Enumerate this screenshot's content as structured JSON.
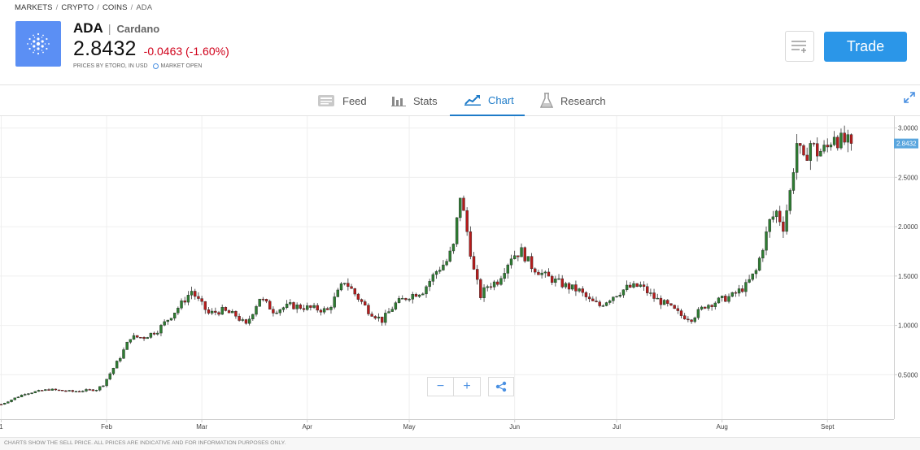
{
  "breadcrumb": [
    "MARKETS",
    "CRYPTO",
    "COINS",
    "ADA"
  ],
  "instrument": {
    "symbol": "ADA",
    "name": "Cardano",
    "price": "2.8432",
    "change": "-0.0463 (-1.60%)",
    "price_source": "PRICES BY ETORO, IN USD",
    "market_status": "MARKET OPEN"
  },
  "actions": {
    "watchlist_icon": "add-to-watchlist-icon",
    "trade_label": "Trade"
  },
  "tabs": [
    {
      "label": "Feed",
      "icon": "feed-icon"
    },
    {
      "label": "Stats",
      "icon": "stats-icon"
    },
    {
      "label": "Chart",
      "icon": "chart-icon",
      "active": true
    },
    {
      "label": "Research",
      "icon": "flask-icon"
    }
  ],
  "colors": {
    "up": "#2e7d32",
    "down": "#b71c1c",
    "accent": "#1e7bc8",
    "trade": "#2b96e8",
    "change_negative": "#d0021b",
    "price_tag": "#5aa6de"
  },
  "chart_data": {
    "type": "candlestick",
    "series_name": "ADA",
    "y_tick_labels": [
      "3.0000",
      "2.5000",
      "2.0000",
      "1.5000",
      "1.0000",
      "0.5000"
    ],
    "y_ticks": [
      3.0,
      2.5,
      2.0,
      1.5,
      1.0,
      0.5
    ],
    "ylim": [
      0.05,
      3.12
    ],
    "x_tick_labels": [
      "1",
      "Feb",
      "Mar",
      "Apr",
      "May",
      "Jun",
      "Jul",
      "Aug",
      "Sept"
    ],
    "x_ticks_day": [
      0,
      31,
      59,
      90,
      120,
      151,
      181,
      212,
      243
    ],
    "last_price_label": "2.8432",
    "last_price": 2.8432,
    "grid": true,
    "close_keypoints": [
      [
        0,
        0.2
      ],
      [
        7,
        0.31
      ],
      [
        14,
        0.35
      ],
      [
        21,
        0.33
      ],
      [
        28,
        0.35
      ],
      [
        30,
        0.4
      ],
      [
        35,
        0.68
      ],
      [
        38,
        0.88
      ],
      [
        42,
        0.88
      ],
      [
        46,
        0.95
      ],
      [
        50,
        1.1
      ],
      [
        53,
        1.22
      ],
      [
        56,
        1.35
      ],
      [
        58,
        1.25
      ],
      [
        61,
        1.12
      ],
      [
        65,
        1.15
      ],
      [
        69,
        1.1
      ],
      [
        72,
        1.0
      ],
      [
        76,
        1.28
      ],
      [
        80,
        1.15
      ],
      [
        85,
        1.2
      ],
      [
        90,
        1.18
      ],
      [
        96,
        1.15
      ],
      [
        101,
        1.45
      ],
      [
        104,
        1.32
      ],
      [
        108,
        1.15
      ],
      [
        112,
        1.05
      ],
      [
        116,
        1.22
      ],
      [
        120,
        1.3
      ],
      [
        124,
        1.35
      ],
      [
        128,
        1.55
      ],
      [
        131,
        1.65
      ],
      [
        133,
        1.8
      ],
      [
        135,
        2.32
      ],
      [
        137,
        1.95
      ],
      [
        139,
        1.55
      ],
      [
        141,
        1.3
      ],
      [
        143,
        1.4
      ],
      [
        146,
        1.45
      ],
      [
        150,
        1.7
      ],
      [
        153,
        1.75
      ],
      [
        156,
        1.6
      ],
      [
        160,
        1.5
      ],
      [
        163,
        1.45
      ],
      [
        166,
        1.4
      ],
      [
        170,
        1.35
      ],
      [
        173,
        1.25
      ],
      [
        176,
        1.2
      ],
      [
        180,
        1.3
      ],
      [
        184,
        1.38
      ],
      [
        188,
        1.4
      ],
      [
        192,
        1.28
      ],
      [
        196,
        1.2
      ],
      [
        200,
        1.1
      ],
      [
        203,
        1.07
      ],
      [
        207,
        1.2
      ],
      [
        211,
        1.25
      ],
      [
        215,
        1.3
      ],
      [
        219,
        1.4
      ],
      [
        222,
        1.55
      ],
      [
        224,
        1.8
      ],
      [
        226,
        2.05
      ],
      [
        228,
        2.15
      ],
      [
        230,
        2.0
      ],
      [
        232,
        2.35
      ],
      [
        234,
        2.85
      ],
      [
        236,
        2.65
      ],
      [
        238,
        2.85
      ],
      [
        240,
        2.75
      ],
      [
        243,
        2.8
      ],
      [
        245,
        2.95
      ],
      [
        246,
        2.88
      ],
      [
        250,
        2.84
      ]
    ]
  },
  "controls": {
    "zoom_out": "−",
    "zoom_in": "+",
    "share_icon": "share-icon",
    "expand_icon": "expand-icon"
  },
  "footer": {
    "disclaimer": "CHARTS SHOW THE SELL PRICE. ALL PRICES ARE INDICATIVE AND FOR INFORMATION PURPOSES ONLY."
  }
}
